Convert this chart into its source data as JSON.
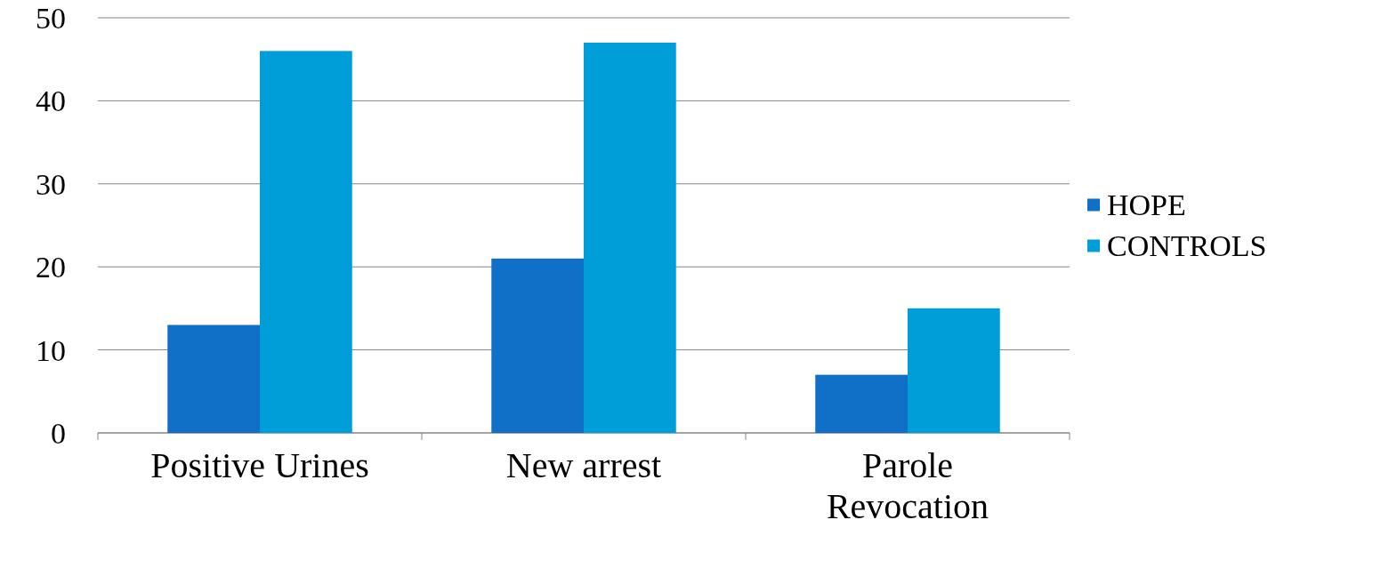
{
  "chart_data": {
    "type": "bar",
    "categories": [
      "Positive Urines",
      "New arrest",
      "Parole Revocation"
    ],
    "series": [
      {
        "name": "HOPE",
        "color": "#1070c8",
        "values": [
          13,
          21,
          7
        ]
      },
      {
        "name": "CONTROLS",
        "color": "#009ed8",
        "values": [
          46,
          47,
          15
        ]
      }
    ],
    "ylim": [
      0,
      50
    ],
    "yticks": [
      0,
      10,
      20,
      30,
      40,
      50
    ],
    "grid": "y",
    "legend": "right"
  }
}
